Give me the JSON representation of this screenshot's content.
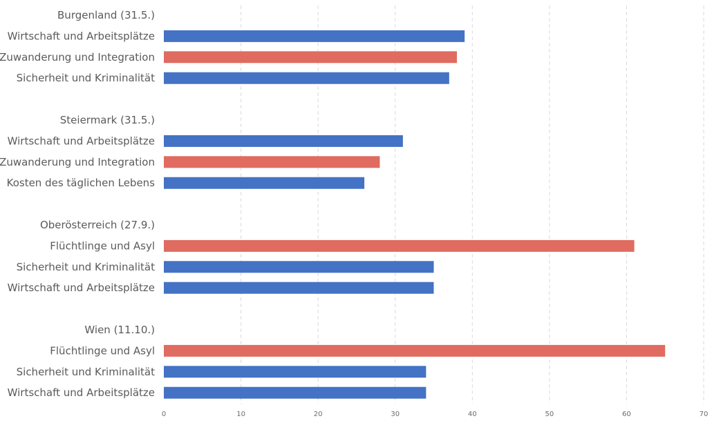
{
  "chart_data": {
    "type": "bar",
    "orientation": "horizontal",
    "xlim": [
      0,
      70
    ],
    "x_ticks": [
      "0",
      "10",
      "20",
      "30",
      "40",
      "50",
      "60",
      "70"
    ],
    "grid": true,
    "colors": {
      "blue": "#4472c4",
      "red": "#e06b60"
    },
    "groups": [
      {
        "label": "Burgenland (31.5.)",
        "bars": [
          {
            "label": "Wirtschaft und Arbeitsplätze",
            "value": 39,
            "color": "blue"
          },
          {
            "label": "Zuwanderung und Integration",
            "value": 38,
            "color": "red"
          },
          {
            "label": "Sicherheit und Kriminalität",
            "value": 37,
            "color": "blue"
          }
        ]
      },
      {
        "label": "Steiermark (31.5.)",
        "bars": [
          {
            "label": "Wirtschaft und Arbeitsplätze",
            "value": 31,
            "color": "blue"
          },
          {
            "label": "Zuwanderung und Integration",
            "value": 28,
            "color": "red"
          },
          {
            "label": "Kosten des täglichen Lebens",
            "value": 26,
            "color": "blue"
          }
        ]
      },
      {
        "label": "Oberösterreich (27.9.)",
        "bars": [
          {
            "label": "Flüchtlinge und Asyl",
            "value": 61,
            "color": "red"
          },
          {
            "label": "Sicherheit und Kriminalität",
            "value": 35,
            "color": "blue"
          },
          {
            "label": "Wirtschaft und Arbeitsplätze",
            "value": 35,
            "color": "blue"
          }
        ]
      },
      {
        "label": "Wien (11.10.)",
        "bars": [
          {
            "label": "Flüchtlinge und Asyl",
            "value": 65,
            "color": "red"
          },
          {
            "label": "Sicherheit und Kriminalität",
            "value": 34,
            "color": "blue"
          },
          {
            "label": "Wirtschaft und Arbeitsplätze",
            "value": 34,
            "color": "blue"
          }
        ]
      }
    ]
  }
}
